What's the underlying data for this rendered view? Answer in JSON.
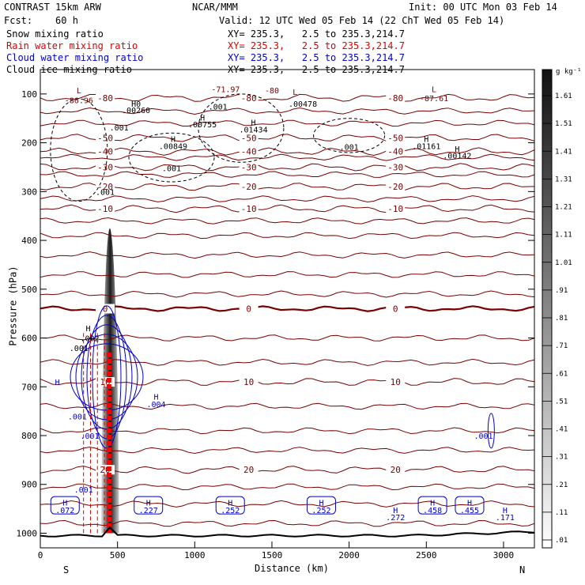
{
  "header": {
    "model": "CONTRAST 15km ARW",
    "center": "NCAR/MMM",
    "init": "Init: 00 UTC Mon 03 Feb 14",
    "fcst": "Fcst:    60 h",
    "valid": "Valid: 12 UTC Wed 05 Feb 14 (22 ChT Wed 05 Feb 14)"
  },
  "legend": [
    {
      "label": "Snow mixing ratio",
      "xy": "XY= 235.3,   2.5 to 235.3,214.7",
      "color": "#000000"
    },
    {
      "label": "Rain water mixing ratio",
      "xy": "XY= 235.3,   2.5 to 235.3,214.7",
      "color": "#dd0000"
    },
    {
      "label": "Cloud water mixing ratio",
      "xy": "XY= 235.3,   2.5 to 235.3,214.7",
      "color": "#0000cc"
    },
    {
      "label": "Cloud ice mixing ratio",
      "xy": "XY= 235.3,   2.5 to 235.3,214.7",
      "color": "#000000"
    }
  ],
  "colorbar": {
    "unit": "g kg⁻¹",
    "labels": [
      "1.61",
      "1.51",
      "1.41",
      "1.31",
      "1.21",
      "1.11",
      "1.01",
      ".91",
      ".81",
      ".71",
      ".61",
      ".51",
      ".41",
      ".31",
      ".21",
      ".11",
      ".01"
    ]
  },
  "chart_data": {
    "type": "cross-section contour",
    "title": "Vertical cross-section of hydrometeor mixing ratios with temperature contours",
    "xlabel": "Distance (km)",
    "ylabel": "Pressure (hPa)",
    "xlim": [
      0,
      3200
    ],
    "ylim": [
      1030,
      50
    ],
    "x_ticks": [
      "0",
      "500",
      "1000",
      "1500",
      "2000",
      "2500",
      "3000"
    ],
    "y_ticks": [
      "100",
      "200",
      "300",
      "400",
      "500",
      "600",
      "700",
      "800",
      "900",
      "1000"
    ],
    "x_end_labels": {
      "left": "S",
      "right": "N"
    },
    "temperature_contours_C": [
      {
        "level": "-80",
        "pressure": 108
      },
      {
        "level": "-50",
        "pressure": 190
      },
      {
        "level": "-40",
        "pressure": 218
      },
      {
        "level": "-30",
        "pressure": 250
      },
      {
        "level": "-20",
        "pressure": 290
      },
      {
        "level": "-10",
        "pressure": 335
      },
      {
        "level": "0",
        "pressure": 540
      },
      {
        "level": "10",
        "pressure": 690
      },
      {
        "level": "20",
        "pressure": 870
      }
    ],
    "extrema_labels": [
      {
        "text": "L",
        "x": 250,
        "p": 92
      },
      {
        "text": "-86.96",
        "x": 250,
        "p": 112
      },
      {
        "text": "-71.97",
        "x": 1200,
        "p": 90
      },
      {
        "text": "-80",
        "x": 1500,
        "p": 92
      },
      {
        "text": "L",
        "x": 1650,
        "p": 95
      },
      {
        "text": "L",
        "x": 2550,
        "p": 90
      },
      {
        "text": "-87.61",
        "x": 2550,
        "p": 108
      },
      {
        "text": "H0",
        "x": 620,
        "p": 120
      },
      {
        "text": ".00260",
        "x": 620,
        "p": 133
      },
      {
        "text": ".001",
        "x": 1150,
        "p": 125
      },
      {
        "text": ".00478",
        "x": 1700,
        "p": 120
      },
      {
        "text": "H",
        "x": 1050,
        "p": 148
      },
      {
        "text": ".00755",
        "x": 1050,
        "p": 162
      },
      {
        "text": "H",
        "x": 1380,
        "p": 158
      },
      {
        "text": ".01434",
        "x": 1380,
        "p": 172
      },
      {
        "text": ".001",
        "x": 510,
        "p": 168
      },
      {
        "text": "H",
        "x": 860,
        "p": 192
      },
      {
        "text": ".00849",
        "x": 860,
        "p": 206
      },
      {
        "text": ".001",
        "x": 2000,
        "p": 208
      },
      {
        "text": "H",
        "x": 2500,
        "p": 192
      },
      {
        "text": ".01161",
        "x": 2500,
        "p": 206
      },
      {
        "text": "H",
        "x": 2700,
        "p": 212
      },
      {
        "text": ".00142",
        "x": 2700,
        "p": 226
      },
      {
        "text": ".001",
        "x": 850,
        "p": 252
      },
      {
        "text": ".001",
        "x": 420,
        "p": 300
      },
      {
        "text": "H",
        "x": 310,
        "p": 580
      },
      {
        "text": ".002",
        "x": 320,
        "p": 600
      },
      {
        "text": ".001",
        "x": 250,
        "p": 620
      },
      {
        "text": "H",
        "x": 110,
        "p": 690
      },
      {
        "text": "H",
        "x": 750,
        "p": 720
      },
      {
        "text": ".004",
        "x": 750,
        "p": 735
      },
      {
        "text": ".001",
        "x": 240,
        "p": 760
      },
      {
        "text": ".001",
        "x": 320,
        "p": 800
      },
      {
        "text": ".001",
        "x": 2870,
        "p": 800
      },
      {
        "text": ".001",
        "x": 280,
        "p": 910
      },
      {
        "text": "H",
        "x": 1230,
        "p": 937
      },
      {
        "text": ".252",
        "x": 1230,
        "p": 952
      },
      {
        "text": "H",
        "x": 1820,
        "p": 937
      },
      {
        "text": ".252",
        "x": 1820,
        "p": 952
      },
      {
        "text": "H",
        "x": 700,
        "p": 937
      },
      {
        "text": ".227",
        "x": 700,
        "p": 952
      },
      {
        "text": "H",
        "x": 160,
        "p": 937
      },
      {
        "text": ".072",
        "x": 160,
        "p": 952
      },
      {
        "text": "H",
        "x": 2300,
        "p": 952
      },
      {
        "text": ".272",
        "x": 2300,
        "p": 967
      },
      {
        "text": "H",
        "x": 2540,
        "p": 937
      },
      {
        "text": ".458",
        "x": 2540,
        "p": 952
      },
      {
        "text": "H",
        "x": 2780,
        "p": 937
      },
      {
        "text": ".455",
        "x": 2780,
        "p": 952
      },
      {
        "text": "H",
        "x": 3010,
        "p": 952
      },
      {
        "text": ".171",
        "x": 3010,
        "p": 967
      }
    ],
    "snow_peak": {
      "x": 450,
      "p_top": 380,
      "p_bottom": 1000,
      "max_g_per_kg": 1.61
    },
    "terrain_peak": {
      "x": 450,
      "p": 975
    }
  }
}
